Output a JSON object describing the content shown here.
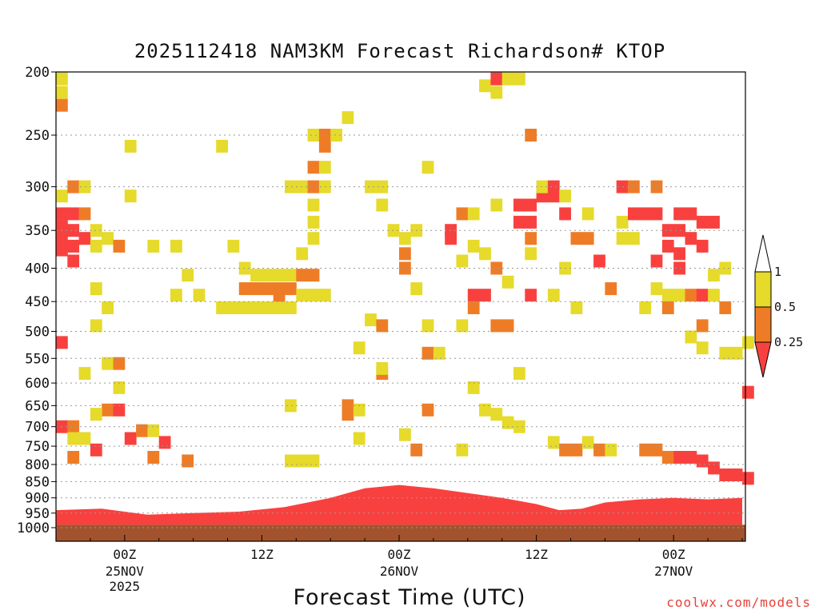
{
  "chart_data": {
    "type": "heatmap",
    "title": "2025112418 NAM3KM Forecast Richardson# KTOP",
    "xlabel": "Forecast Time (UTC)",
    "ylabel": "",
    "x_range_hours": [
      0,
      60
    ],
    "y_axis": "pressure (log scale, inverted)",
    "ylim": [
      1000,
      200
    ],
    "y_ticks": [
      200,
      250,
      300,
      350,
      400,
      450,
      500,
      550,
      600,
      650,
      700,
      750,
      800,
      850,
      900,
      950,
      1000
    ],
    "x_ticks": [
      {
        "hour": 6,
        "label": "00Z",
        "sublabel": "25NOV",
        "year": "2025"
      },
      {
        "hour": 18,
        "label": "12Z",
        "sublabel": "",
        "year": ""
      },
      {
        "hour": 30,
        "label": "00Z",
        "sublabel": "26NOV",
        "year": ""
      },
      {
        "hour": 42,
        "label": "12Z",
        "sublabel": "",
        "year": ""
      },
      {
        "hour": 54,
        "label": "00Z",
        "sublabel": "27NOV",
        "year": ""
      }
    ],
    "grid": "horizontal dotted at each pressure tick",
    "legend_labels": [
      "1",
      "0.5",
      "0.25"
    ],
    "legend_placement": "right",
    "colors": {
      "ri_lt_025": "#f8413f",
      "ri_025_05": "#ee7c26",
      "ri_05_1": "#e6da2b",
      "ground": "#a2532d",
      "legend_top": "#ffffff"
    },
    "cells_note": "h = forecast hour, p = pressure hPa, c = class (r <0.25, o 0.25-0.5, y 0.5-1)",
    "cells": [
      {
        "h": 0,
        "p": 205,
        "c": "y"
      },
      {
        "h": 0,
        "p": 215,
        "c": "y"
      },
      {
        "h": 0,
        "p": 225,
        "c": "o"
      },
      {
        "h": 0,
        "p": 310,
        "c": "y"
      },
      {
        "h": 0,
        "p": 330,
        "c": "r"
      },
      {
        "h": 0,
        "p": 345,
        "c": "r"
      },
      {
        "h": 0,
        "p": 360,
        "c": "r"
      },
      {
        "h": 0,
        "p": 375,
        "c": "r"
      },
      {
        "h": 0,
        "p": 520,
        "c": "r"
      },
      {
        "h": 1,
        "p": 300,
        "c": "o"
      },
      {
        "h": 1,
        "p": 330,
        "c": "r"
      },
      {
        "h": 1,
        "p": 350,
        "c": "r"
      },
      {
        "h": 1,
        "p": 370,
        "c": "r"
      },
      {
        "h": 1,
        "p": 390,
        "c": "r"
      },
      {
        "h": 2,
        "p": 300,
        "c": "y"
      },
      {
        "h": 2,
        "p": 330,
        "c": "o"
      },
      {
        "h": 2,
        "p": 360,
        "c": "r"
      },
      {
        "h": 3,
        "p": 350,
        "c": "y"
      },
      {
        "h": 3,
        "p": 370,
        "c": "y"
      },
      {
        "h": 4,
        "p": 360,
        "c": "y"
      },
      {
        "h": 5,
        "p": 370,
        "c": "o"
      },
      {
        "h": 3,
        "p": 430,
        "c": "y"
      },
      {
        "h": 4,
        "p": 460,
        "c": "y"
      },
      {
        "h": 3,
        "p": 490,
        "c": "y"
      },
      {
        "h": 4,
        "p": 560,
        "c": "y"
      },
      {
        "h": 5,
        "p": 560,
        "c": "o"
      },
      {
        "h": 2,
        "p": 580,
        "c": "y"
      },
      {
        "h": 5,
        "p": 610,
        "c": "y"
      },
      {
        "h": 4,
        "p": 660,
        "c": "o"
      },
      {
        "h": 5,
        "p": 660,
        "c": "r"
      },
      {
        "h": 3,
        "p": 670,
        "c": "y"
      },
      {
        "h": 6,
        "p": 260,
        "c": "y"
      },
      {
        "h": 6,
        "p": 310,
        "c": "y"
      },
      {
        "h": 8,
        "p": 370,
        "c": "y"
      },
      {
        "h": 10,
        "p": 370,
        "c": "y"
      },
      {
        "h": 11,
        "p": 410,
        "c": "y"
      },
      {
        "h": 10,
        "p": 440,
        "c": "y"
      },
      {
        "h": 12,
        "p": 440,
        "c": "y"
      },
      {
        "h": 14,
        "p": 260,
        "c": "y"
      },
      {
        "h": 15,
        "p": 370,
        "c": "y"
      },
      {
        "h": 16,
        "p": 400,
        "c": "y"
      },
      {
        "h": 14,
        "p": 460,
        "c": "y"
      },
      {
        "h": 15,
        "p": 460,
        "c": "y"
      },
      {
        "h": 16,
        "p": 460,
        "c": "y"
      },
      {
        "h": 17,
        "p": 460,
        "c": "y"
      },
      {
        "h": 17,
        "p": 410,
        "c": "y"
      },
      {
        "h": 16,
        "p": 430,
        "c": "o"
      },
      {
        "h": 17,
        "p": 430,
        "c": "o"
      },
      {
        "h": 18,
        "p": 430,
        "c": "o"
      },
      {
        "h": 19,
        "p": 430,
        "c": "o"
      },
      {
        "h": 20,
        "p": 430,
        "c": "o"
      },
      {
        "h": 18,
        "p": 410,
        "c": "y"
      },
      {
        "h": 19,
        "p": 460,
        "c": "y"
      },
      {
        "h": 18,
        "p": 460,
        "c": "y"
      },
      {
        "h": 19,
        "p": 440,
        "c": "o"
      },
      {
        "h": 20,
        "p": 460,
        "c": "y"
      },
      {
        "h": 19,
        "p": 410,
        "c": "y"
      },
      {
        "h": 20,
        "p": 410,
        "c": "y"
      },
      {
        "h": 21,
        "p": 410,
        "c": "o"
      },
      {
        "h": 22,
        "p": 410,
        "c": "o"
      },
      {
        "h": 21,
        "p": 440,
        "c": "y"
      },
      {
        "h": 22,
        "p": 440,
        "c": "y"
      },
      {
        "h": 23,
        "p": 440,
        "c": "y"
      },
      {
        "h": 21,
        "p": 380,
        "c": "y"
      },
      {
        "h": 20,
        "p": 300,
        "c": "y"
      },
      {
        "h": 21,
        "p": 300,
        "c": "y"
      },
      {
        "h": 22,
        "p": 320,
        "c": "y"
      },
      {
        "h": 22,
        "p": 340,
        "c": "y"
      },
      {
        "h": 22,
        "p": 360,
        "c": "y"
      },
      {
        "h": 22,
        "p": 250,
        "c": "y"
      },
      {
        "h": 22,
        "p": 280,
        "c": "o"
      },
      {
        "h": 22,
        "p": 300,
        "c": "o"
      },
      {
        "h": 23,
        "p": 250,
        "c": "o"
      },
      {
        "h": 23,
        "p": 260,
        "c": "o"
      },
      {
        "h": 23,
        "p": 280,
        "c": "y"
      },
      {
        "h": 23,
        "p": 300,
        "c": "y"
      },
      {
        "h": 24,
        "p": 250,
        "c": "y"
      },
      {
        "h": 25,
        "p": 235,
        "c": "y"
      },
      {
        "h": 20,
        "p": 650,
        "c": "y"
      },
      {
        "h": 25,
        "p": 650,
        "c": "o"
      },
      {
        "h": 25,
        "p": 670,
        "c": "o"
      },
      {
        "h": 26,
        "p": 660,
        "c": "y"
      },
      {
        "h": 26,
        "p": 530,
        "c": "y"
      },
      {
        "h": 27,
        "p": 480,
        "c": "y"
      },
      {
        "h": 28,
        "p": 490,
        "c": "o"
      },
      {
        "h": 27,
        "p": 300,
        "c": "y"
      },
      {
        "h": 28,
        "p": 300,
        "c": "y"
      },
      {
        "h": 28,
        "p": 320,
        "c": "y"
      },
      {
        "h": 29,
        "p": 350,
        "c": "y"
      },
      {
        "h": 30,
        "p": 360,
        "c": "y"
      },
      {
        "h": 30,
        "p": 380,
        "c": "o"
      },
      {
        "h": 30,
        "p": 400,
        "c": "o"
      },
      {
        "h": 31,
        "p": 350,
        "c": "y"
      },
      {
        "h": 31,
        "p": 430,
        "c": "y"
      },
      {
        "h": 32,
        "p": 280,
        "c": "y"
      },
      {
        "h": 32,
        "p": 490,
        "c": "y"
      },
      {
        "h": 32,
        "p": 540,
        "c": "o"
      },
      {
        "h": 28,
        "p": 580,
        "c": "o"
      },
      {
        "h": 28,
        "p": 570,
        "c": "y"
      },
      {
        "h": 32,
        "p": 660,
        "c": "o"
      },
      {
        "h": 33,
        "p": 540,
        "c": "y"
      },
      {
        "h": 34,
        "p": 350,
        "c": "r"
      },
      {
        "h": 34,
        "p": 360,
        "c": "r"
      },
      {
        "h": 35,
        "p": 330,
        "c": "o"
      },
      {
        "h": 35,
        "p": 390,
        "c": "y"
      },
      {
        "h": 35,
        "p": 490,
        "c": "y"
      },
      {
        "h": 36,
        "p": 330,
        "c": "y"
      },
      {
        "h": 36,
        "p": 370,
        "c": "y"
      },
      {
        "h": 36,
        "p": 440,
        "c": "r"
      },
      {
        "h": 36,
        "p": 460,
        "c": "o"
      },
      {
        "h": 37,
        "p": 440,
        "c": "r"
      },
      {
        "h": 37,
        "p": 380,
        "c": "y"
      },
      {
        "h": 38,
        "p": 320,
        "c": "y"
      },
      {
        "h": 38,
        "p": 400,
        "c": "o"
      },
      {
        "h": 38,
        "p": 490,
        "c": "o"
      },
      {
        "h": 39,
        "p": 490,
        "c": "o"
      },
      {
        "h": 39,
        "p": 420,
        "c": "y"
      },
      {
        "h": 40,
        "p": 320,
        "c": "r"
      },
      {
        "h": 40,
        "p": 340,
        "c": "r"
      },
      {
        "h": 41,
        "p": 320,
        "c": "r"
      },
      {
        "h": 41,
        "p": 340,
        "c": "r"
      },
      {
        "h": 41,
        "p": 360,
        "c": "o"
      },
      {
        "h": 41,
        "p": 440,
        "c": "r"
      },
      {
        "h": 41,
        "p": 380,
        "c": "y"
      },
      {
        "h": 42,
        "p": 310,
        "c": "r"
      },
      {
        "h": 42,
        "p": 300,
        "c": "y"
      },
      {
        "h": 43,
        "p": 300,
        "c": "r"
      },
      {
        "h": 43,
        "p": 310,
        "c": "r"
      },
      {
        "h": 43,
        "p": 440,
        "c": "y"
      },
      {
        "h": 44,
        "p": 330,
        "c": "r"
      },
      {
        "h": 44,
        "p": 400,
        "c": "y"
      },
      {
        "h": 44,
        "p": 310,
        "c": "y"
      },
      {
        "h": 45,
        "p": 360,
        "c": "o"
      },
      {
        "h": 45,
        "p": 460,
        "c": "y"
      },
      {
        "h": 46,
        "p": 360,
        "c": "o"
      },
      {
        "h": 46,
        "p": 330,
        "c": "y"
      },
      {
        "h": 47,
        "p": 390,
        "c": "r"
      },
      {
        "h": 48,
        "p": 430,
        "c": "o"
      },
      {
        "h": 49,
        "p": 300,
        "c": "r"
      },
      {
        "h": 49,
        "p": 340,
        "c": "y"
      },
      {
        "h": 49,
        "p": 360,
        "c": "y"
      },
      {
        "h": 50,
        "p": 300,
        "c": "o"
      },
      {
        "h": 50,
        "p": 330,
        "c": "r"
      },
      {
        "h": 50,
        "p": 360,
        "c": "y"
      },
      {
        "h": 51,
        "p": 330,
        "c": "r"
      },
      {
        "h": 51,
        "p": 460,
        "c": "y"
      },
      {
        "h": 52,
        "p": 300,
        "c": "o"
      },
      {
        "h": 52,
        "p": 330,
        "c": "r"
      },
      {
        "h": 52,
        "p": 390,
        "c": "r"
      },
      {
        "h": 52,
        "p": 430,
        "c": "y"
      },
      {
        "h": 53,
        "p": 350,
        "c": "r"
      },
      {
        "h": 53,
        "p": 370,
        "c": "r"
      },
      {
        "h": 53,
        "p": 440,
        "c": "y"
      },
      {
        "h": 53,
        "p": 460,
        "c": "o"
      },
      {
        "h": 54,
        "p": 330,
        "c": "r"
      },
      {
        "h": 54,
        "p": 350,
        "c": "r"
      },
      {
        "h": 54,
        "p": 380,
        "c": "r"
      },
      {
        "h": 54,
        "p": 400,
        "c": "r"
      },
      {
        "h": 54,
        "p": 440,
        "c": "y"
      },
      {
        "h": 55,
        "p": 330,
        "c": "r"
      },
      {
        "h": 55,
        "p": 360,
        "c": "r"
      },
      {
        "h": 55,
        "p": 440,
        "c": "o"
      },
      {
        "h": 55,
        "p": 510,
        "c": "y"
      },
      {
        "h": 56,
        "p": 340,
        "c": "r"
      },
      {
        "h": 56,
        "p": 370,
        "c": "r"
      },
      {
        "h": 56,
        "p": 440,
        "c": "r"
      },
      {
        "h": 56,
        "p": 490,
        "c": "o"
      },
      {
        "h": 56,
        "p": 530,
        "c": "y"
      },
      {
        "h": 57,
        "p": 340,
        "c": "r"
      },
      {
        "h": 57,
        "p": 410,
        "c": "y"
      },
      {
        "h": 57,
        "p": 440,
        "c": "y"
      },
      {
        "h": 58,
        "p": 400,
        "c": "y"
      },
      {
        "h": 58,
        "p": 460,
        "c": "o"
      },
      {
        "h": 58,
        "p": 540,
        "c": "y"
      },
      {
        "h": 59,
        "p": 540,
        "c": "y"
      },
      {
        "h": 60,
        "p": 520,
        "c": "y"
      },
      {
        "h": 60,
        "p": 620,
        "c": "r"
      },
      {
        "h": 37,
        "p": 210,
        "c": "y"
      },
      {
        "h": 38,
        "p": 205,
        "c": "r"
      },
      {
        "h": 38,
        "p": 215,
        "c": "y"
      },
      {
        "h": 39,
        "p": 205,
        "c": "y"
      },
      {
        "h": 40,
        "p": 205,
        "c": "y"
      },
      {
        "h": 41,
        "p": 250,
        "c": "o"
      },
      {
        "h": 36,
        "p": 610,
        "c": "y"
      },
      {
        "h": 37,
        "p": 660,
        "c": "y"
      },
      {
        "h": 38,
        "p": 670,
        "c": "y"
      },
      {
        "h": 39,
        "p": 690,
        "c": "y"
      },
      {
        "h": 40,
        "p": 700,
        "c": "y"
      },
      {
        "h": 40,
        "p": 580,
        "c": "y"
      },
      {
        "h": 43,
        "p": 740,
        "c": "y"
      },
      {
        "h": 44,
        "p": 760,
        "c": "o"
      },
      {
        "h": 45,
        "p": 760,
        "c": "o"
      },
      {
        "h": 46,
        "p": 740,
        "c": "y"
      },
      {
        "h": 47,
        "p": 760,
        "c": "o"
      },
      {
        "h": 48,
        "p": 760,
        "c": "y"
      },
      {
        "h": 51,
        "p": 760,
        "c": "o"
      },
      {
        "h": 52,
        "p": 760,
        "c": "o"
      },
      {
        "h": 53,
        "p": 780,
        "c": "o"
      },
      {
        "h": 54,
        "p": 780,
        "c": "r"
      },
      {
        "h": 55,
        "p": 780,
        "c": "r"
      },
      {
        "h": 56,
        "p": 790,
        "c": "r"
      },
      {
        "h": 57,
        "p": 810,
        "c": "r"
      },
      {
        "h": 58,
        "p": 830,
        "c": "r"
      },
      {
        "h": 59,
        "p": 830,
        "c": "r"
      },
      {
        "h": 60,
        "p": 840,
        "c": "r"
      },
      {
        "h": 0,
        "p": 700,
        "c": "r"
      },
      {
        "h": 1,
        "p": 700,
        "c": "o"
      },
      {
        "h": 1,
        "p": 730,
        "c": "y"
      },
      {
        "h": 2,
        "p": 730,
        "c": "y"
      },
      {
        "h": 3,
        "p": 760,
        "c": "r"
      },
      {
        "h": 6,
        "p": 730,
        "c": "r"
      },
      {
        "h": 7,
        "p": 710,
        "c": "o"
      },
      {
        "h": 8,
        "p": 710,
        "c": "y"
      },
      {
        "h": 9,
        "p": 740,
        "c": "r"
      },
      {
        "h": 1,
        "p": 780,
        "c": "o"
      },
      {
        "h": 8,
        "p": 780,
        "c": "o"
      },
      {
        "h": 11,
        "p": 790,
        "c": "o"
      },
      {
        "h": 20,
        "p": 790,
        "c": "y"
      },
      {
        "h": 21,
        "p": 790,
        "c": "y"
      },
      {
        "h": 22,
        "p": 790,
        "c": "y"
      },
      {
        "h": 26,
        "p": 730,
        "c": "y"
      },
      {
        "h": 30,
        "p": 720,
        "c": "y"
      },
      {
        "h": 31,
        "p": 760,
        "c": "o"
      },
      {
        "h": 35,
        "p": 760,
        "c": "y"
      }
    ],
    "surface_band": [
      {
        "h": 0,
        "p": 940
      },
      {
        "h": 4,
        "p": 935
      },
      {
        "h": 8,
        "p": 955
      },
      {
        "h": 12,
        "p": 950
      },
      {
        "h": 16,
        "p": 945
      },
      {
        "h": 20,
        "p": 930
      },
      {
        "h": 24,
        "p": 900
      },
      {
        "h": 27,
        "p": 870
      },
      {
        "h": 30,
        "p": 860
      },
      {
        "h": 33,
        "p": 870
      },
      {
        "h": 36,
        "p": 885
      },
      {
        "h": 39,
        "p": 900
      },
      {
        "h": 42,
        "p": 920
      },
      {
        "h": 44,
        "p": 940
      },
      {
        "h": 46,
        "p": 935
      },
      {
        "h": 48,
        "p": 915
      },
      {
        "h": 51,
        "p": 905
      },
      {
        "h": 54,
        "p": 900
      },
      {
        "h": 57,
        "p": 905
      },
      {
        "h": 60,
        "p": 900
      }
    ],
    "ground_top_hpa": 990
  },
  "credit": "coolwx.com/models"
}
